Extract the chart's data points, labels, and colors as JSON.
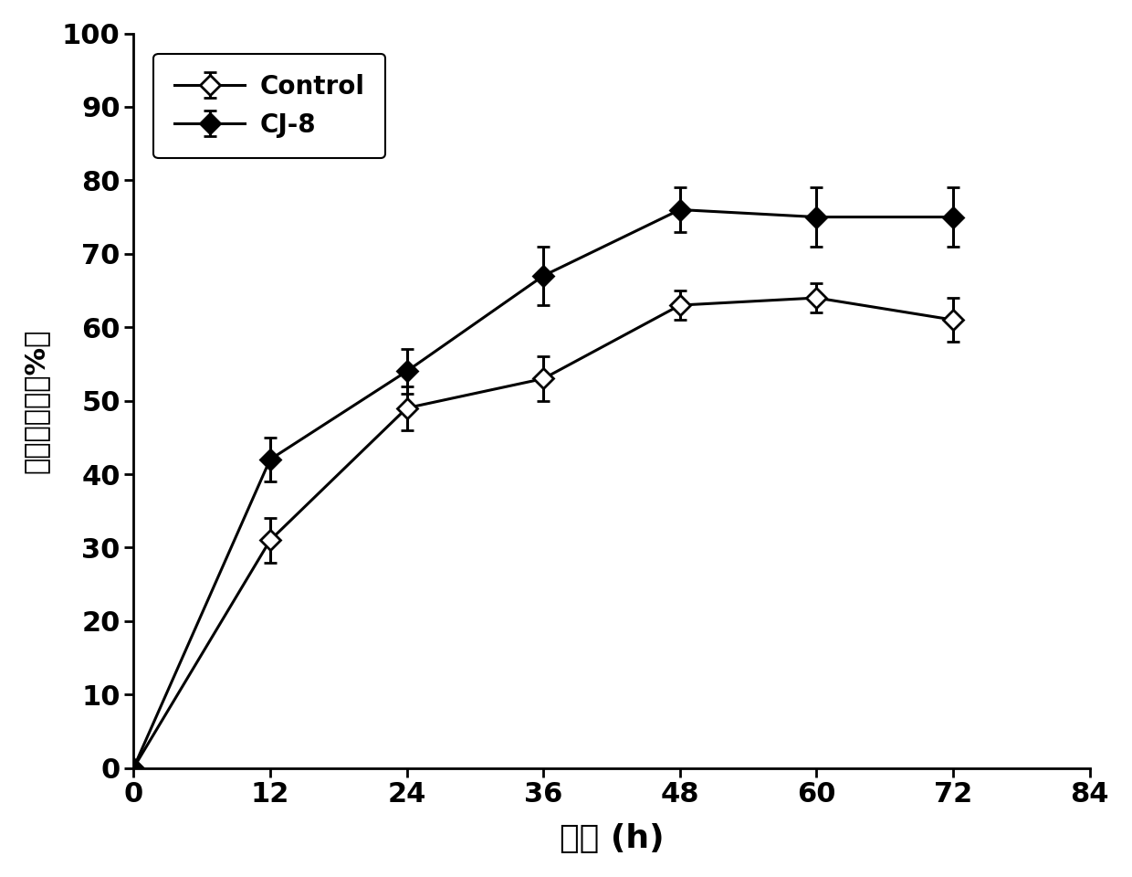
{
  "x": [
    0,
    12,
    24,
    36,
    48,
    60,
    72
  ],
  "control_y": [
    0,
    31,
    49,
    53,
    63,
    64,
    61
  ],
  "control_yerr": [
    0,
    3,
    3,
    3,
    2,
    2,
    3
  ],
  "cj8_y": [
    0,
    42,
    54,
    67,
    76,
    75,
    75
  ],
  "cj8_yerr": [
    0,
    3,
    3,
    4,
    3,
    4,
    4
  ],
  "xlabel_cn": "时间",
  "xlabel_en": " (h)",
  "ylabel_line1": "湿重减重率（%）",
  "legend_control": "Control",
  "legend_cj8": "CJ-8",
  "xlim": [
    0,
    84
  ],
  "ylim": [
    0,
    100
  ],
  "xticks": [
    0,
    12,
    24,
    36,
    48,
    60,
    72,
    84
  ],
  "yticks": [
    0,
    10,
    20,
    30,
    40,
    50,
    60,
    70,
    80,
    90,
    100
  ],
  "line_color": "#000000",
  "bg_color": "#ffffff",
  "plot_bg": "#ffffff"
}
